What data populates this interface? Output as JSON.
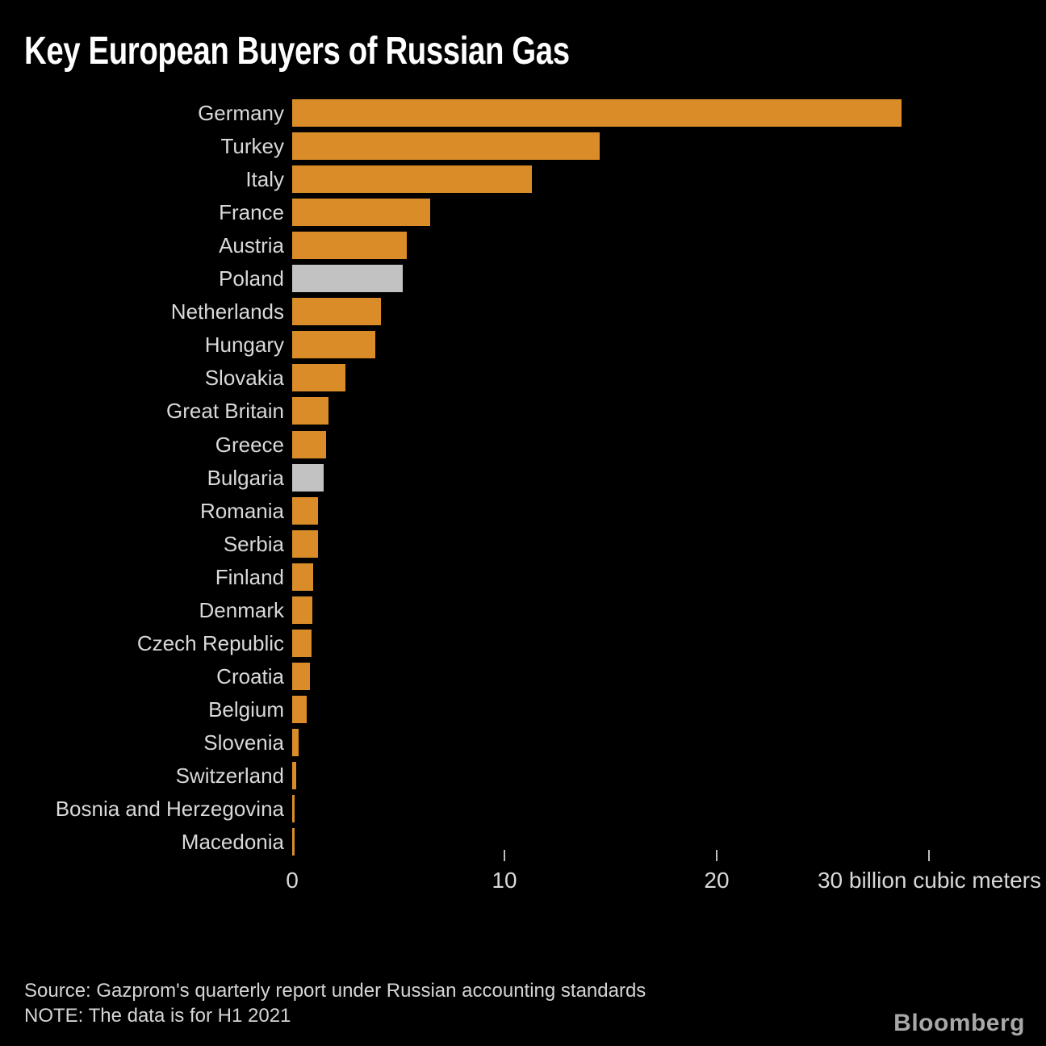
{
  "chart_data": {
    "type": "bar",
    "orientation": "horizontal",
    "title": "Key European Buyers of Russian Gas",
    "categories": [
      "Germany",
      "Turkey",
      "Italy",
      "France",
      "Austria",
      "Poland",
      "Netherlands",
      "Hungary",
      "Slovakia",
      "Great Britain",
      "Greece",
      "Bulgaria",
      "Romania",
      "Serbia",
      "Finland",
      "Denmark",
      "Czech Republic",
      "Croatia",
      "Belgium",
      "Slovenia",
      "Switzerland",
      "Bosnia and Herzegovina",
      "Macedonia"
    ],
    "values": [
      28.7,
      14.5,
      11.3,
      6.5,
      5.4,
      5.2,
      4.2,
      3.9,
      2.5,
      1.7,
      1.6,
      1.5,
      1.2,
      1.2,
      1.0,
      0.95,
      0.9,
      0.85,
      0.7,
      0.3,
      0.2,
      0.1,
      0.1
    ],
    "highlight_categories": [
      "Poland",
      "Bulgaria"
    ],
    "xlim": [
      0,
      30
    ],
    "x_tick_lines": [
      10,
      20,
      30
    ],
    "x_tick_labels": [
      {
        "value": 0,
        "label": "0"
      },
      {
        "value": 10,
        "label": "10"
      },
      {
        "value": 20,
        "label": "20"
      }
    ],
    "unit_label": "30 billion cubic meters",
    "grid": "off",
    "legend": "none",
    "colors": {
      "bar": "#d98c28",
      "highlight": "#c2c2c2",
      "background": "#000000",
      "label_text": "#d9d9d9",
      "title_text": "#ffffff"
    },
    "source": "Source: Gazprom's quarterly report under Russian accounting standards",
    "note": "NOTE: The data is for H1 2021",
    "logo": "Bloomberg"
  }
}
